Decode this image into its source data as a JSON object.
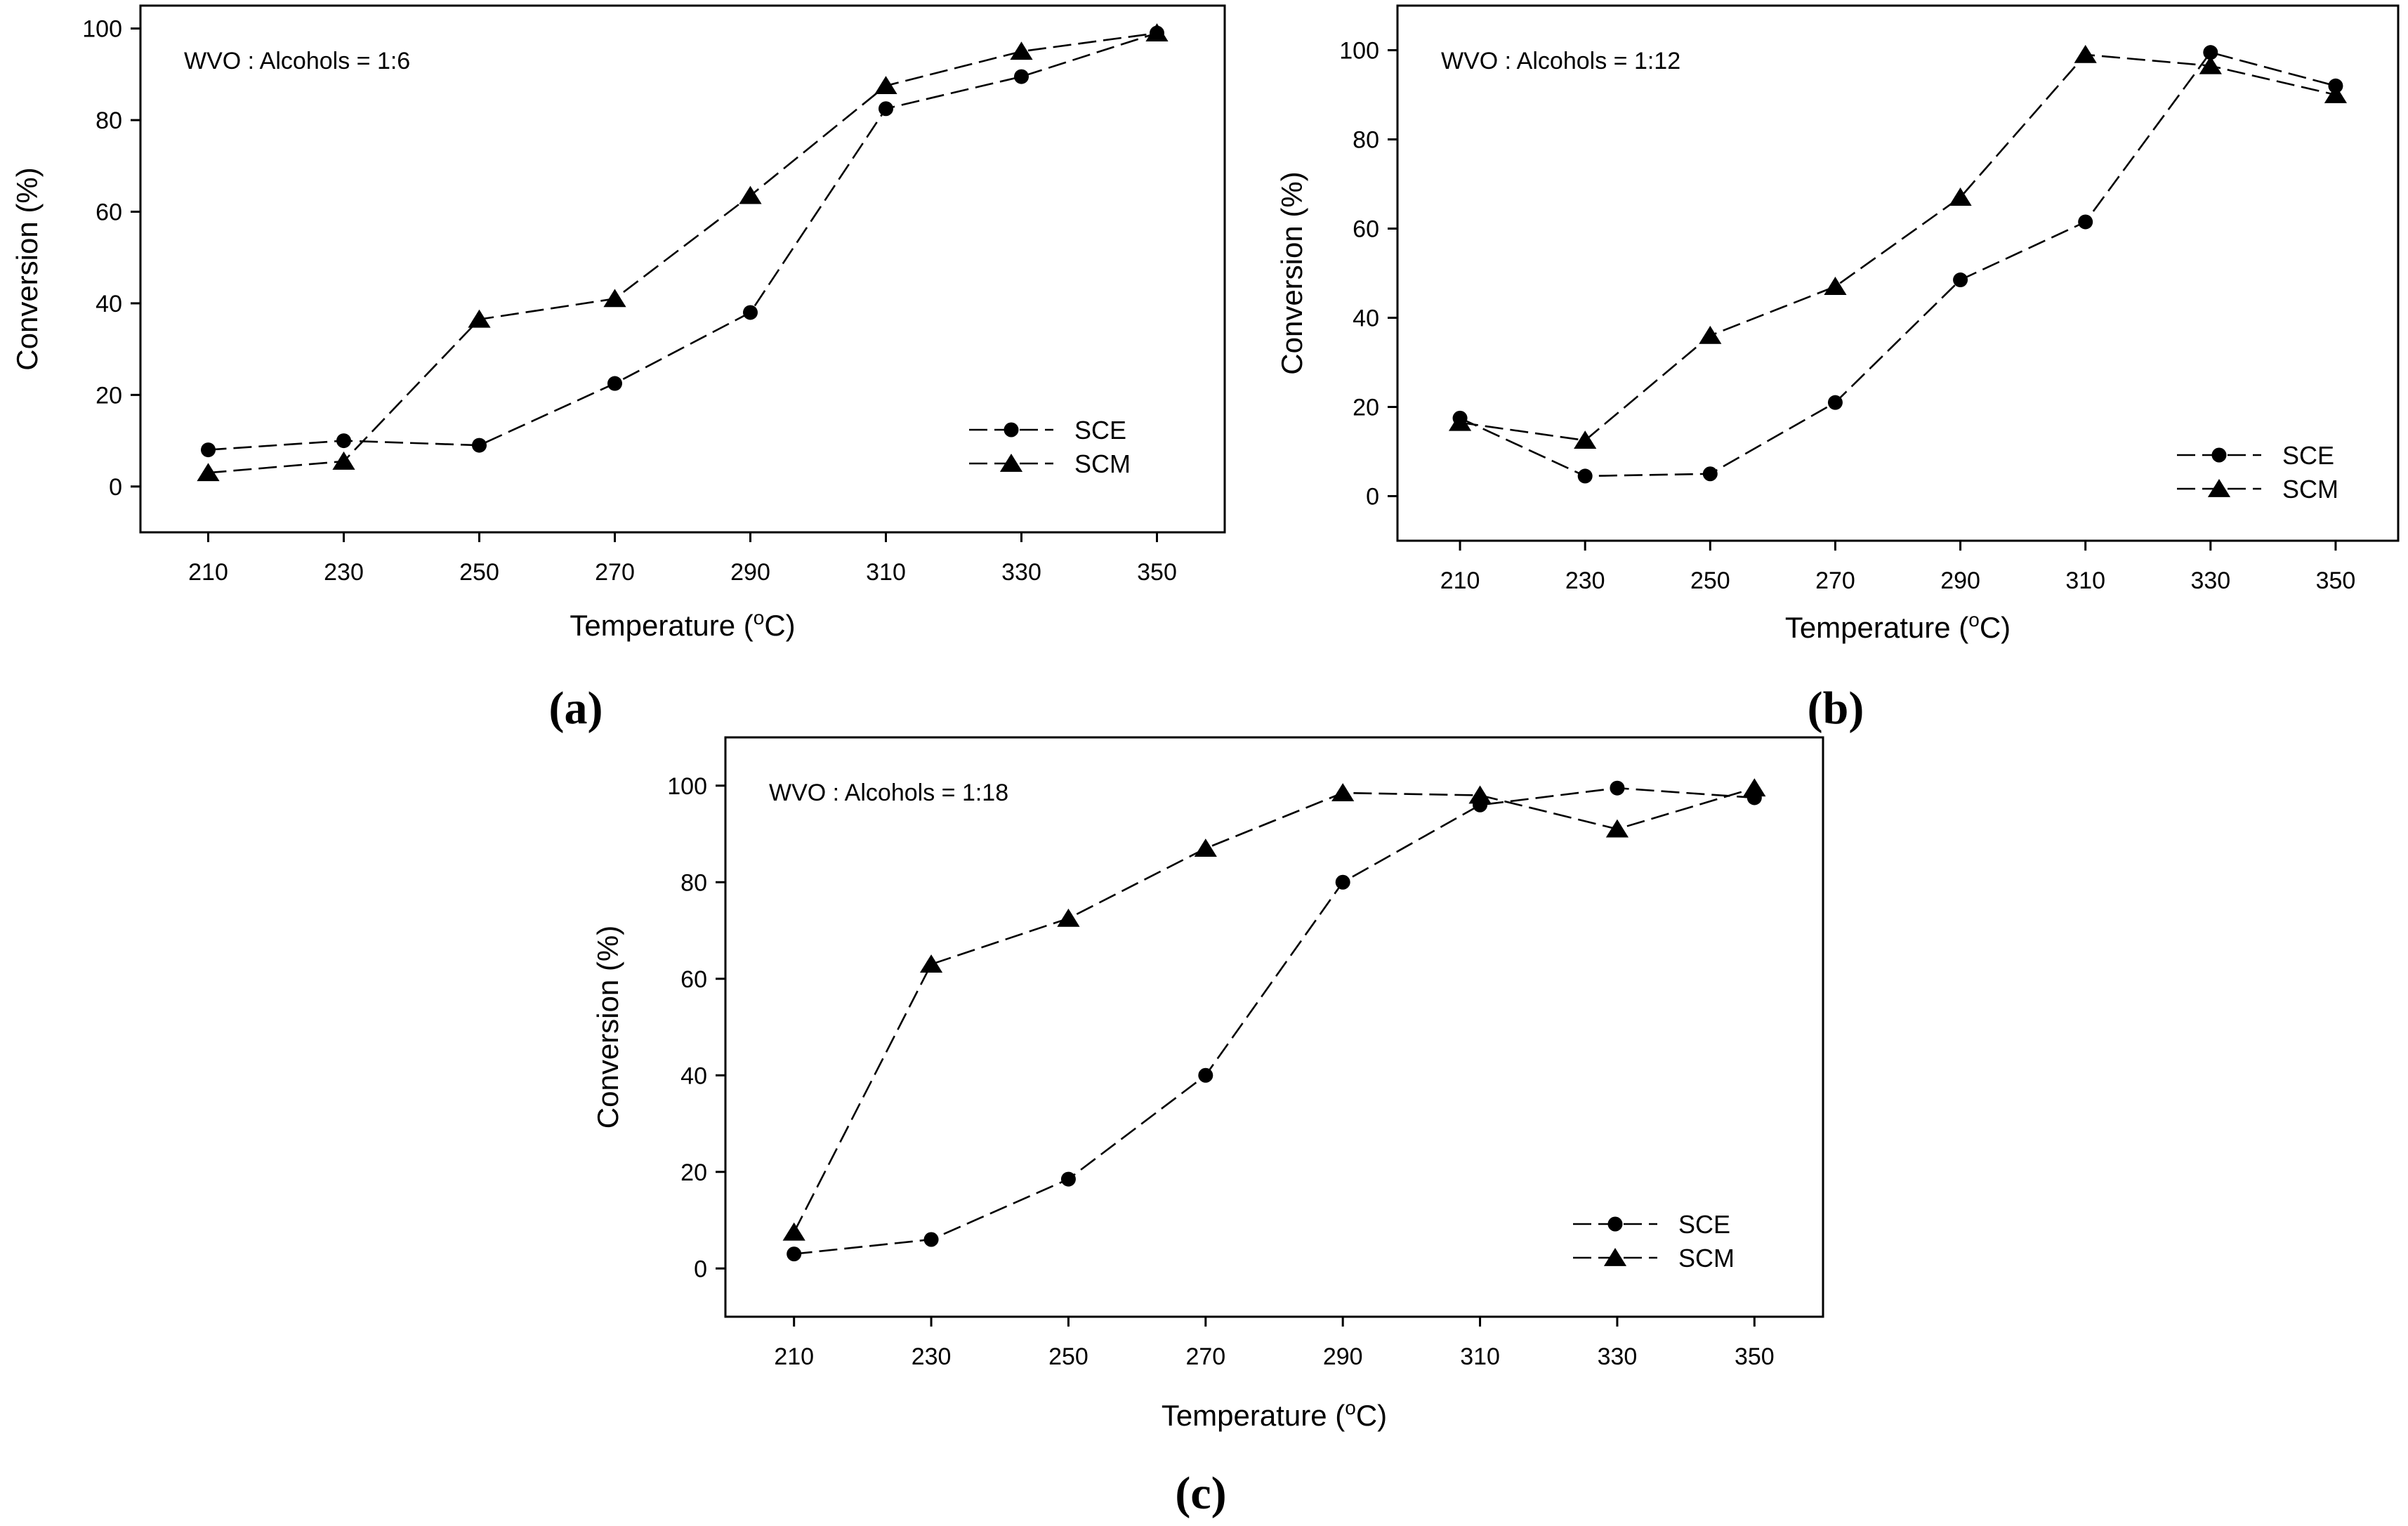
{
  "chart_data": [
    {
      "type": "line",
      "panel_label": "(a)",
      "annotation": "WVO : Alcohols = 1:6",
      "xlabel": "Temperature (oC)",
      "xlabel_main": "Temperature (",
      "xlabel_sup": "o",
      "xlabel_end": "C)",
      "ylabel": "Conversion (%)",
      "x": [
        210,
        230,
        250,
        270,
        290,
        310,
        330,
        350
      ],
      "x_ticks": [
        "210",
        "230",
        "250",
        "270",
        "290",
        "310",
        "330",
        "350"
      ],
      "y_ticks": [
        "0",
        "20",
        "40",
        "60",
        "80",
        "100"
      ],
      "xlim": [
        200,
        360
      ],
      "ylim": [
        -10,
        105
      ],
      "legend_position": "bottom-right",
      "series": [
        {
          "name": "SCE",
          "marker": "circle",
          "values": [
            8,
            10,
            9,
            22.5,
            38,
            82.5,
            89.5,
            99
          ]
        },
        {
          "name": "SCM",
          "marker": "triangle",
          "values": [
            3,
            5.5,
            36.5,
            41,
            63.5,
            87.5,
            95,
            99
          ]
        }
      ]
    },
    {
      "type": "line",
      "panel_label": "(b)",
      "annotation": "WVO : Alcohols = 1:12",
      "xlabel": "Temperature (oC)",
      "xlabel_main": "Temperature (",
      "xlabel_sup": "o",
      "xlabel_end": "C)",
      "ylabel": "Conversion (%)",
      "x": [
        210,
        230,
        250,
        270,
        290,
        310,
        330,
        350
      ],
      "x_ticks": [
        "210",
        "230",
        "250",
        "270",
        "290",
        "310",
        "330",
        "350"
      ],
      "y_ticks": [
        "0",
        "20",
        "40",
        "60",
        "80",
        "100"
      ],
      "xlim": [
        200,
        360
      ],
      "ylim": [
        -10,
        110
      ],
      "legend_position": "bottom-right",
      "series": [
        {
          "name": "SCE",
          "marker": "circle",
          "values": [
            17.5,
            4.5,
            5,
            21,
            48.5,
            61.5,
            99.5,
            92
          ]
        },
        {
          "name": "SCM",
          "marker": "triangle",
          "values": [
            16.5,
            12.5,
            36,
            47,
            67,
            99,
            96.5,
            90
          ]
        }
      ]
    },
    {
      "type": "line",
      "panel_label": "(c)",
      "annotation": "WVO : Alcohols = 1:18",
      "xlabel": "Temperature (oC)",
      "xlabel_main": "Temperature (",
      "xlabel_sup": "o",
      "xlabel_end": "C)",
      "ylabel": "Conversion (%)",
      "x": [
        210,
        230,
        250,
        270,
        290,
        310,
        330,
        350
      ],
      "x_ticks": [
        "210",
        "230",
        "250",
        "270",
        "290",
        "310",
        "330",
        "350"
      ],
      "y_ticks": [
        "0",
        "20",
        "40",
        "60",
        "80",
        "100"
      ],
      "xlim": [
        200,
        360
      ],
      "ylim": [
        -10,
        110
      ],
      "legend_position": "bottom-right",
      "series": [
        {
          "name": "SCE",
          "marker": "circle",
          "values": [
            3,
            6,
            18.5,
            40,
            80,
            96,
            99.5,
            97.5
          ]
        },
        {
          "name": "SCM",
          "marker": "triangle",
          "values": [
            7.5,
            63,
            72.5,
            87,
            98.5,
            98,
            91,
            99.5
          ]
        }
      ]
    }
  ]
}
